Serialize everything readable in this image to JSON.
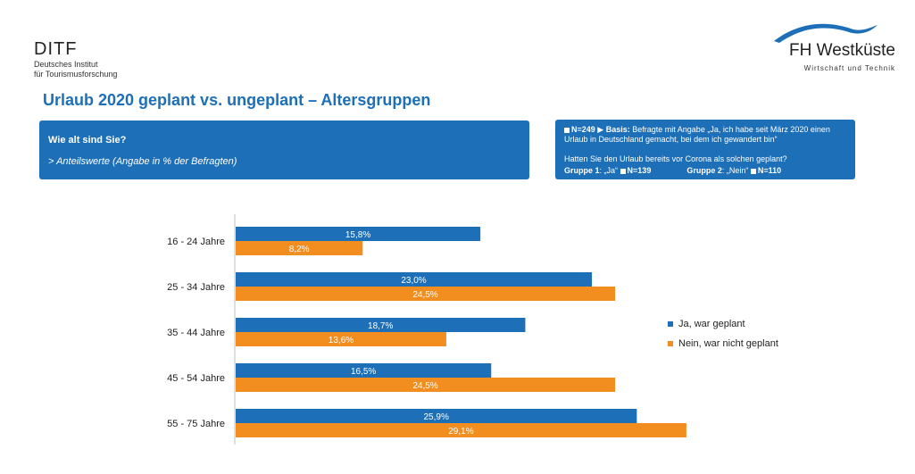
{
  "header": {
    "ditf_name": "DITF",
    "ditf_sub1": "Deutsches Institut",
    "ditf_sub2": "für Tourismusforschung",
    "fh_name": "FH Westküste",
    "fh_sub": "Wirtschaft und Technik"
  },
  "title": "Urlaub 2020 geplant vs. ungeplant – Altersgruppen",
  "question": {
    "text": "Wie alt sind Sie?",
    "note": "> Anteilswerte (Angabe in % der Befragten)"
  },
  "info": {
    "n_total": "N=249",
    "basis_label": "Basis:",
    "basis_text": "Befragte mit Angabe „Ja, ich habe seit März 2020 einen Urlaub in Deutschland gemacht, bei dem ich gewandert bin“",
    "line2": "Hatten Sie den Urlaub bereits vor Corona als solchen geplant?",
    "group1_label": "Gruppe 1",
    "group1_value": ": „Ja“",
    "group1_n": "N=139",
    "group2_label": "Gruppe 2",
    "group2_value": ": „Nein“",
    "group2_n": "N=110"
  },
  "chart_data": {
    "type": "bar",
    "orientation": "horizontal",
    "categories": [
      "16 - 24 Jahre",
      "25 - 34 Jahre",
      "35 - 44 Jahre",
      "45 - 54 Jahre",
      "55 - 75 Jahre"
    ],
    "series": [
      {
        "name": "Ja, war geplant",
        "color": "#1d6fb8",
        "values": [
          15.8,
          23.0,
          18.7,
          16.5,
          25.9
        ],
        "labels": [
          "15,8%",
          "23,0%",
          "18,7%",
          "16,5%",
          "25,9%"
        ]
      },
      {
        "name": "Nein, war nicht geplant",
        "color": "#f28e20",
        "values": [
          8.2,
          24.5,
          13.6,
          24.5,
          29.1
        ],
        "labels": [
          "8,2%",
          "24,5%",
          "13,6%",
          "24,5%",
          "29,1%"
        ]
      }
    ],
    "xlim": [
      0,
      30
    ],
    "grid": false,
    "legend": "right"
  }
}
